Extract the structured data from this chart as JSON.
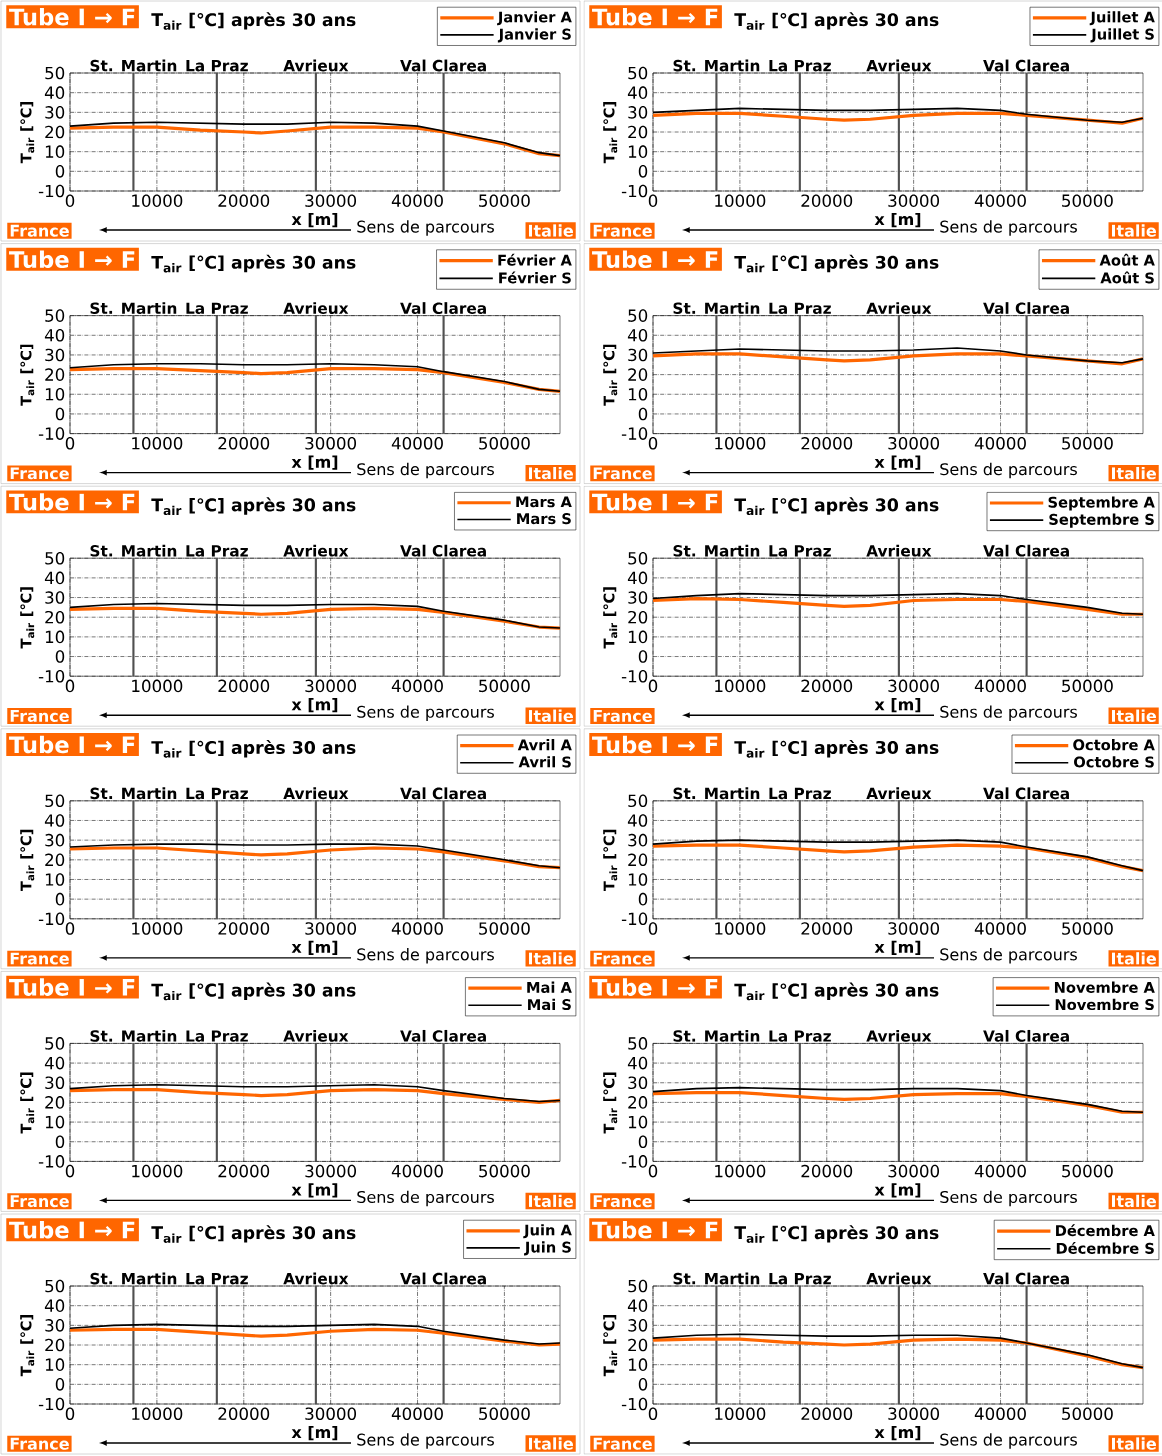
{
  "chart_data": [
    {
      "type": "line",
      "title": "Tube I → F",
      "subtitle": "T$_{air}$ [℃] après 30 ans",
      "xlabel": "x [m]",
      "ylabel": "T$_{air}$ [℃]",
      "x": [
        0,
        5000,
        10000,
        15000,
        20000,
        22000,
        25000,
        30000,
        35000,
        40000,
        43000,
        50000,
        54000,
        56400
      ],
      "series": [
        {
          "name": "Janvier A",
          "color": "#ff6600",
          "values": [
            22,
            22.5,
            22.5,
            21,
            20,
            19.5,
            20.5,
            22.5,
            22.5,
            22,
            20,
            14,
            9,
            8
          ]
        },
        {
          "name": "Janvier S",
          "color": "#000000",
          "values": [
            23,
            24.5,
            25,
            24.5,
            24,
            24,
            24,
            25,
            24.5,
            23,
            20.5,
            14.5,
            9.5,
            8
          ]
        }
      ],
      "xlim": [
        0,
        56400
      ],
      "ylim": [
        -10,
        50
      ],
      "xticks": [
        0,
        10000,
        20000,
        30000,
        40000,
        50000
      ],
      "yticks": [
        -10,
        0,
        10,
        20,
        30,
        40,
        50
      ],
      "grid": true,
      "legend": "top right",
      "ref_lines": [
        {
          "axis": "x",
          "value": 7300,
          "label": "St. Martin",
          "color": "#505050"
        },
        {
          "axis": "x",
          "value": 16900,
          "label": "La Praz",
          "color": "#505050"
        },
        {
          "axis": "x",
          "value": 28300,
          "label": "Avrieux",
          "color": "#505050"
        },
        {
          "axis": "x",
          "value": 43000,
          "label": "Val Clarea",
          "color": "#505050"
        }
      ],
      "annotations": [
        "France",
        "Sens de parcours",
        "Italie"
      ]
    },
    {
      "type": "line",
      "title": "Tube I → F",
      "subtitle": "T$_{air}$ [℃] après 30 ans",
      "xlabel": "x [m]",
      "ylabel": "T$_{air}$ [℃]",
      "x": [
        0,
        5000,
        10000,
        15000,
        20000,
        22000,
        25000,
        30000,
        35000,
        40000,
        43000,
        50000,
        54000,
        56400
      ],
      "series": [
        {
          "name": "Juillet A",
          "color": "#ff6600",
          "values": [
            28.5,
            29.5,
            29.5,
            28,
            26.5,
            26,
            26.5,
            28.5,
            29.5,
            29.5,
            28.5,
            26,
            24.5,
            27
          ]
        },
        {
          "name": "Juillet S",
          "color": "#000000",
          "values": [
            30,
            31,
            32,
            31.5,
            31,
            31,
            31,
            31.5,
            32,
            31,
            29,
            26,
            25,
            27
          ]
        }
      ],
      "xlim": [
        0,
        56400
      ],
      "ylim": [
        -10,
        50
      ],
      "xticks": [
        0,
        10000,
        20000,
        30000,
        40000,
        50000
      ],
      "yticks": [
        -10,
        0,
        10,
        20,
        30,
        40,
        50
      ],
      "grid": true,
      "legend": "top right",
      "ref_lines": [
        {
          "axis": "x",
          "value": 7300,
          "label": "St. Martin",
          "color": "#505050"
        },
        {
          "axis": "x",
          "value": 16900,
          "label": "La Praz",
          "color": "#505050"
        },
        {
          "axis": "x",
          "value": 28300,
          "label": "Avrieux",
          "color": "#505050"
        },
        {
          "axis": "x",
          "value": 43000,
          "label": "Val Clarea",
          "color": "#505050"
        }
      ],
      "annotations": [
        "France",
        "Sens de parcours",
        "Italie"
      ]
    },
    {
      "type": "line",
      "title": "Tube I → F",
      "subtitle": "T$_{air}$ [℃] après 30 ans",
      "xlabel": "x [m]",
      "ylabel": "T$_{air}$ [℃]",
      "x": [
        0,
        5000,
        10000,
        15000,
        20000,
        22000,
        25000,
        30000,
        35000,
        40000,
        43000,
        50000,
        54000,
        56400
      ],
      "series": [
        {
          "name": "Février A",
          "color": "#ff6600",
          "values": [
            22.5,
            23,
            23,
            22,
            21,
            20.5,
            21,
            23,
            23,
            22.5,
            21,
            16,
            12.5,
            11.5
          ]
        },
        {
          "name": "Février S",
          "color": "#000000",
          "values": [
            23.5,
            25,
            25.5,
            25.5,
            25,
            25,
            25,
            25.5,
            25,
            24,
            21.5,
            16.5,
            12.5,
            11.5
          ]
        }
      ],
      "xlim": [
        0,
        56400
      ],
      "ylim": [
        -10,
        50
      ],
      "xticks": [
        0,
        10000,
        20000,
        30000,
        40000,
        50000
      ],
      "yticks": [
        -10,
        0,
        10,
        20,
        30,
        40,
        50
      ],
      "grid": true,
      "legend": "top right",
      "ref_lines": [
        {
          "axis": "x",
          "value": 7300,
          "label": "St. Martin",
          "color": "#505050"
        },
        {
          "axis": "x",
          "value": 16900,
          "label": "La Praz",
          "color": "#505050"
        },
        {
          "axis": "x",
          "value": 28300,
          "label": "Avrieux",
          "color": "#505050"
        },
        {
          "axis": "x",
          "value": 43000,
          "label": "Val Clarea",
          "color": "#505050"
        }
      ],
      "annotations": [
        "France",
        "Sens de parcours",
        "Italie"
      ]
    },
    {
      "type": "line",
      "title": "Tube I → F",
      "subtitle": "T$_{air}$ [℃] après 30 ans",
      "xlabel": "x [m]",
      "ylabel": "T$_{air}$ [℃]",
      "x": [
        0,
        5000,
        10000,
        15000,
        20000,
        22000,
        25000,
        30000,
        35000,
        40000,
        43000,
        50000,
        54000,
        56400
      ],
      "series": [
        {
          "name": "Août A",
          "color": "#ff6600",
          "values": [
            29.5,
            30.5,
            30.5,
            29,
            27.5,
            27,
            27.5,
            29.5,
            30.5,
            30.5,
            29.5,
            27,
            25.5,
            28
          ]
        },
        {
          "name": "Août S",
          "color": "#000000",
          "values": [
            31,
            32,
            33,
            32.5,
            32,
            32,
            32,
            32.5,
            33.5,
            32,
            30,
            27,
            26,
            28
          ]
        }
      ],
      "xlim": [
        0,
        56400
      ],
      "ylim": [
        -10,
        50
      ],
      "xticks": [
        0,
        10000,
        20000,
        30000,
        40000,
        50000
      ],
      "yticks": [
        -10,
        0,
        10,
        20,
        30,
        40,
        50
      ],
      "grid": true,
      "legend": "top right",
      "ref_lines": [
        {
          "axis": "x",
          "value": 7300,
          "label": "St. Martin",
          "color": "#505050"
        },
        {
          "axis": "x",
          "value": 16900,
          "label": "La Praz",
          "color": "#505050"
        },
        {
          "axis": "x",
          "value": 28300,
          "label": "Avrieux",
          "color": "#505050"
        },
        {
          "axis": "x",
          "value": 43000,
          "label": "Val Clarea",
          "color": "#505050"
        }
      ],
      "annotations": [
        "France",
        "Sens de parcours",
        "Italie"
      ]
    },
    {
      "type": "line",
      "title": "Tube I → F",
      "subtitle": "T$_{air}$ [℃] après 30 ans",
      "xlabel": "x [m]",
      "ylabel": "T$_{air}$ [℃]",
      "x": [
        0,
        5000,
        10000,
        15000,
        20000,
        22000,
        25000,
        30000,
        35000,
        40000,
        43000,
        50000,
        54000,
        56400
      ],
      "series": [
        {
          "name": "Mars A",
          "color": "#ff6600",
          "values": [
            24,
            24.5,
            24.5,
            23,
            22,
            21.5,
            22,
            24,
            24.5,
            24,
            22.5,
            18,
            15,
            14.5
          ]
        },
        {
          "name": "Mars S",
          "color": "#000000",
          "values": [
            25,
            26.5,
            27,
            26.5,
            26,
            26,
            26,
            26.5,
            26.5,
            25.5,
            23,
            18.5,
            15,
            14.5
          ]
        }
      ],
      "xlim": [
        0,
        56400
      ],
      "ylim": [
        -10,
        50
      ],
      "xticks": [
        0,
        10000,
        20000,
        30000,
        40000,
        50000
      ],
      "yticks": [
        -10,
        0,
        10,
        20,
        30,
        40,
        50
      ],
      "grid": true,
      "legend": "top right",
      "ref_lines": [
        {
          "axis": "x",
          "value": 7300,
          "label": "St. Martin",
          "color": "#505050"
        },
        {
          "axis": "x",
          "value": 16900,
          "label": "La Praz",
          "color": "#505050"
        },
        {
          "axis": "x",
          "value": 28300,
          "label": "Avrieux",
          "color": "#505050"
        },
        {
          "axis": "x",
          "value": 43000,
          "label": "Val Clarea",
          "color": "#505050"
        }
      ],
      "annotations": [
        "France",
        "Sens de parcours",
        "Italie"
      ]
    },
    {
      "type": "line",
      "title": "Tube I → F",
      "subtitle": "T$_{air}$ [℃] après 30 ans",
      "xlabel": "x [m]",
      "ylabel": "T$_{air}$ [℃]",
      "x": [
        0,
        5000,
        10000,
        15000,
        20000,
        22000,
        25000,
        30000,
        35000,
        40000,
        43000,
        50000,
        54000,
        56400
      ],
      "series": [
        {
          "name": "Septembre A",
          "color": "#ff6600",
          "values": [
            28.5,
            29.5,
            29,
            27.5,
            26,
            25.5,
            26,
            28.5,
            29,
            29,
            28,
            24,
            21.5,
            21.5
          ]
        },
        {
          "name": "Septembre S",
          "color": "#000000",
          "values": [
            29.5,
            31,
            32,
            31.5,
            31,
            31,
            31,
            31.5,
            32,
            31,
            29,
            25,
            22,
            21.5
          ]
        }
      ],
      "xlim": [
        0,
        56400
      ],
      "ylim": [
        -10,
        50
      ],
      "xticks": [
        0,
        10000,
        20000,
        30000,
        40000,
        50000
      ],
      "yticks": [
        -10,
        0,
        10,
        20,
        30,
        40,
        50
      ],
      "grid": true,
      "legend": "top right",
      "ref_lines": [
        {
          "axis": "x",
          "value": 7300,
          "label": "St. Martin",
          "color": "#505050"
        },
        {
          "axis": "x",
          "value": 16900,
          "label": "La Praz",
          "color": "#505050"
        },
        {
          "axis": "x",
          "value": 28300,
          "label": "Avrieux",
          "color": "#505050"
        },
        {
          "axis": "x",
          "value": 43000,
          "label": "Val Clarea",
          "color": "#505050"
        }
      ],
      "annotations": [
        "France",
        "Sens de parcours",
        "Italie"
      ]
    },
    {
      "type": "line",
      "title": "Tube I → F",
      "subtitle": "T$_{air}$ [℃] après 30 ans",
      "xlabel": "x [m]",
      "ylabel": "T$_{air}$ [℃]",
      "x": [
        0,
        5000,
        10000,
        15000,
        20000,
        22000,
        25000,
        30000,
        35000,
        40000,
        43000,
        50000,
        54000,
        56400
      ],
      "series": [
        {
          "name": "Avril A",
          "color": "#ff6600",
          "values": [
            25.5,
            26,
            26,
            24.5,
            23,
            22.5,
            23,
            25,
            26,
            25.5,
            24,
            19.5,
            16.5,
            16
          ]
        },
        {
          "name": "Avril S",
          "color": "#000000",
          "values": [
            26.5,
            27.5,
            28,
            28,
            27.5,
            27.5,
            27.5,
            28,
            28,
            27,
            25,
            20,
            17,
            16
          ]
        }
      ],
      "xlim": [
        0,
        56400
      ],
      "ylim": [
        -10,
        50
      ],
      "xticks": [
        0,
        10000,
        20000,
        30000,
        40000,
        50000
      ],
      "yticks": [
        -10,
        0,
        10,
        20,
        30,
        40,
        50
      ],
      "grid": true,
      "legend": "top right",
      "ref_lines": [
        {
          "axis": "x",
          "value": 7300,
          "label": "St. Martin",
          "color": "#505050"
        },
        {
          "axis": "x",
          "value": 16900,
          "label": "La Praz",
          "color": "#505050"
        },
        {
          "axis": "x",
          "value": 28300,
          "label": "Avrieux",
          "color": "#505050"
        },
        {
          "axis": "x",
          "value": 43000,
          "label": "Val Clarea",
          "color": "#505050"
        }
      ],
      "annotations": [
        "France",
        "Sens de parcours",
        "Italie"
      ]
    },
    {
      "type": "line",
      "title": "Tube I → F",
      "subtitle": "T$_{air}$ [℃] après 30 ans",
      "xlabel": "x [m]",
      "ylabel": "T$_{air}$ [℃]",
      "x": [
        0,
        5000,
        10000,
        15000,
        20000,
        22000,
        25000,
        30000,
        35000,
        40000,
        43000,
        50000,
        54000,
        56400
      ],
      "series": [
        {
          "name": "Octobre A",
          "color": "#ff6600",
          "values": [
            27,
            27.5,
            27.5,
            26,
            24.5,
            24,
            24.5,
            26.5,
            27.5,
            27,
            26,
            21,
            16.5,
            14.5
          ]
        },
        {
          "name": "Octobre S",
          "color": "#000000",
          "values": [
            28,
            29.5,
            30,
            29.5,
            29,
            29,
            29,
            29.5,
            30,
            29,
            26.5,
            21.5,
            17,
            14.5
          ]
        }
      ],
      "xlim": [
        0,
        56400
      ],
      "ylim": [
        -10,
        50
      ],
      "xticks": [
        0,
        10000,
        20000,
        30000,
        40000,
        50000
      ],
      "yticks": [
        -10,
        0,
        10,
        20,
        30,
        40,
        50
      ],
      "grid": true,
      "legend": "top right",
      "ref_lines": [
        {
          "axis": "x",
          "value": 7300,
          "label": "St. Martin",
          "color": "#505050"
        },
        {
          "axis": "x",
          "value": 16900,
          "label": "La Praz",
          "color": "#505050"
        },
        {
          "axis": "x",
          "value": 28300,
          "label": "Avrieux",
          "color": "#505050"
        },
        {
          "axis": "x",
          "value": 43000,
          "label": "Val Clarea",
          "color": "#505050"
        }
      ],
      "annotations": [
        "France",
        "Sens de parcours",
        "Italie"
      ]
    },
    {
      "type": "line",
      "title": "Tube I → F",
      "subtitle": "T$_{air}$ [℃] après 30 ans",
      "xlabel": "x [m]",
      "ylabel": "T$_{air}$ [℃]",
      "x": [
        0,
        5000,
        10000,
        15000,
        20000,
        22000,
        25000,
        30000,
        35000,
        40000,
        43000,
        50000,
        54000,
        56400
      ],
      "series": [
        {
          "name": "Mai A",
          "color": "#ff6600",
          "values": [
            26,
            26.5,
            26.5,
            25,
            24,
            23.5,
            24,
            26,
            26.5,
            26,
            24.5,
            21.5,
            20,
            21
          ]
        },
        {
          "name": "Mai S",
          "color": "#000000",
          "values": [
            27,
            28.5,
            29,
            28.5,
            28,
            28,
            28,
            28.5,
            29,
            28,
            26,
            22,
            20.5,
            21
          ]
        }
      ],
      "xlim": [
        0,
        56400
      ],
      "ylim": [
        -10,
        50
      ],
      "xticks": [
        0,
        10000,
        20000,
        30000,
        40000,
        50000
      ],
      "yticks": [
        -10,
        0,
        10,
        20,
        30,
        40,
        50
      ],
      "grid": true,
      "legend": "top right",
      "ref_lines": [
        {
          "axis": "x",
          "value": 7300,
          "label": "St. Martin",
          "color": "#505050"
        },
        {
          "axis": "x",
          "value": 16900,
          "label": "La Praz",
          "color": "#505050"
        },
        {
          "axis": "x",
          "value": 28300,
          "label": "Avrieux",
          "color": "#505050"
        },
        {
          "axis": "x",
          "value": 43000,
          "label": "Val Clarea",
          "color": "#505050"
        }
      ],
      "annotations": [
        "France",
        "Sens de parcours",
        "Italie"
      ]
    },
    {
      "type": "line",
      "title": "Tube I → F",
      "subtitle": "T$_{air}$ [℃] après 30 ans",
      "xlabel": "x [m]",
      "ylabel": "T$_{air}$ [℃]",
      "x": [
        0,
        5000,
        10000,
        15000,
        20000,
        22000,
        25000,
        30000,
        35000,
        40000,
        43000,
        50000,
        54000,
        56400
      ],
      "series": [
        {
          "name": "Novembre A",
          "color": "#ff6600",
          "values": [
            24.5,
            25,
            25,
            23.5,
            22,
            21.5,
            22,
            24,
            24.5,
            24.5,
            23,
            18.5,
            15,
            15
          ]
        },
        {
          "name": "Novembre S",
          "color": "#000000",
          "values": [
            25.5,
            27,
            27.5,
            27,
            26.5,
            26.5,
            26.5,
            27,
            27,
            26,
            23.5,
            19,
            15.5,
            15
          ]
        }
      ],
      "xlim": [
        0,
        56400
      ],
      "ylim": [
        -10,
        50
      ],
      "xticks": [
        0,
        10000,
        20000,
        30000,
        40000,
        50000
      ],
      "yticks": [
        -10,
        0,
        10,
        20,
        30,
        40,
        50
      ],
      "grid": true,
      "legend": "top right",
      "ref_lines": [
        {
          "axis": "x",
          "value": 7300,
          "label": "St. Martin",
          "color": "#505050"
        },
        {
          "axis": "x",
          "value": 16900,
          "label": "La Praz",
          "color": "#505050"
        },
        {
          "axis": "x",
          "value": 28300,
          "label": "Avrieux",
          "color": "#505050"
        },
        {
          "axis": "x",
          "value": 43000,
          "label": "Val Clarea",
          "color": "#505050"
        }
      ],
      "annotations": [
        "France",
        "Sens de parcours",
        "Italie"
      ]
    },
    {
      "type": "line",
      "title": "Tube I → F",
      "subtitle": "T$_{air}$ [℃] après 30 ans",
      "xlabel": "x [m]",
      "ylabel": "T$_{air}$ [℃]",
      "x": [
        0,
        5000,
        10000,
        15000,
        20000,
        22000,
        25000,
        30000,
        35000,
        40000,
        43000,
        50000,
        54000,
        56400
      ],
      "series": [
        {
          "name": "Juin A",
          "color": "#ff6600",
          "values": [
            27.5,
            28,
            28,
            26.5,
            25,
            24.5,
            25,
            27,
            28,
            27.5,
            26,
            22,
            20,
            20.5
          ]
        },
        {
          "name": "Juin S",
          "color": "#000000",
          "values": [
            28.5,
            30,
            30.5,
            30,
            29.5,
            29.5,
            29.5,
            30,
            30.5,
            29.5,
            27,
            22.5,
            20.5,
            21
          ]
        }
      ],
      "xlim": [
        0,
        56400
      ],
      "ylim": [
        -10,
        50
      ],
      "xticks": [
        0,
        10000,
        20000,
        30000,
        40000,
        50000
      ],
      "yticks": [
        -10,
        0,
        10,
        20,
        30,
        40,
        50
      ],
      "grid": true,
      "legend": "top right",
      "ref_lines": [
        {
          "axis": "x",
          "value": 7300,
          "label": "St. Martin",
          "color": "#505050"
        },
        {
          "axis": "x",
          "value": 16900,
          "label": "La Praz",
          "color": "#505050"
        },
        {
          "axis": "x",
          "value": 28300,
          "label": "Avrieux",
          "color": "#505050"
        },
        {
          "axis": "x",
          "value": 43000,
          "label": "Val Clarea",
          "color": "#505050"
        }
      ],
      "annotations": [
        "France",
        "Sens de parcours",
        "Italie"
      ]
    },
    {
      "type": "line",
      "title": "Tube I → F",
      "subtitle": "T$_{air}$ [℃] après 30 ans",
      "xlabel": "x [m]",
      "ylabel": "T$_{air}$ [℃]",
      "x": [
        0,
        5000,
        10000,
        15000,
        20000,
        22000,
        25000,
        30000,
        35000,
        40000,
        43000,
        50000,
        54000,
        56400
      ],
      "series": [
        {
          "name": "Décembre A",
          "color": "#ff6600",
          "values": [
            22.5,
            23,
            23,
            21.5,
            20.5,
            20,
            20.5,
            22.5,
            23,
            22.5,
            21,
            14.5,
            10,
            8.5
          ]
        },
        {
          "name": "Décembre S",
          "color": "#000000",
          "values": [
            23.5,
            25,
            25.5,
            25,
            24.5,
            24.5,
            24.5,
            25,
            25,
            23.5,
            21,
            15,
            10.5,
            8.5
          ]
        }
      ],
      "xlim": [
        0,
        56400
      ],
      "ylim": [
        -10,
        50
      ],
      "xticks": [
        0,
        10000,
        20000,
        30000,
        40000,
        50000
      ],
      "yticks": [
        -10,
        0,
        10,
        20,
        30,
        40,
        50
      ],
      "grid": true,
      "legend": "top right",
      "ref_lines": [
        {
          "axis": "x",
          "value": 7300,
          "label": "St. Martin",
          "color": "#505050"
        },
        {
          "axis": "x",
          "value": 16900,
          "label": "La Praz",
          "color": "#505050"
        },
        {
          "axis": "x",
          "value": 28300,
          "label": "Avrieux",
          "color": "#505050"
        },
        {
          "axis": "x",
          "value": 43000,
          "label": "Val Clarea",
          "color": "#505050"
        }
      ],
      "annotations": [
        "France",
        "Sens de parcours",
        "Italie"
      ]
    }
  ]
}
